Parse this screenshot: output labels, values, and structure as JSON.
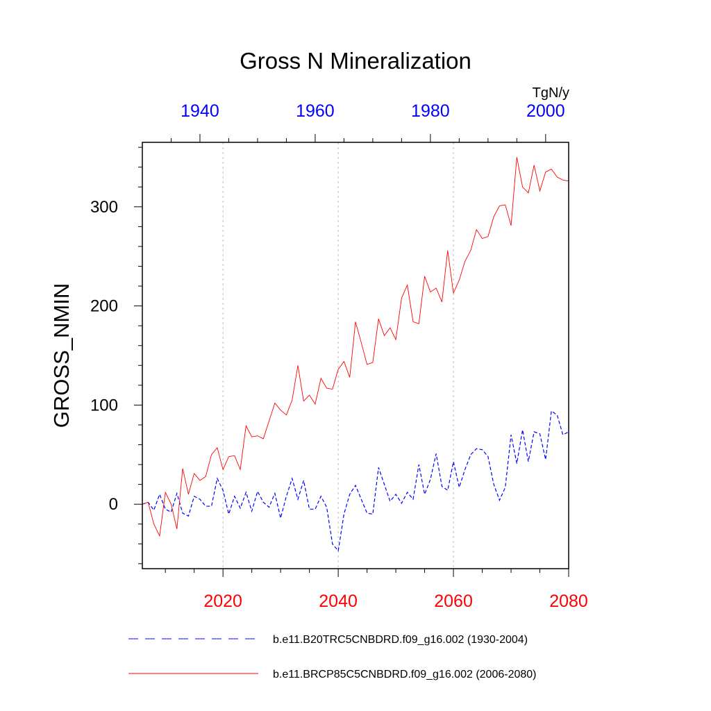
{
  "chart_data": {
    "type": "line",
    "title": "Gross N Mineralization",
    "ylabel": "GROSS_NMIN",
    "units": "TgN/y",
    "ylim": [
      -65,
      365
    ],
    "yticks": [
      0,
      100,
      200,
      300
    ],
    "bottom_axis": {
      "xlim": [
        2006,
        2080
      ],
      "ticks": [
        2020,
        2040,
        2060,
        2080
      ],
      "color": "#ff0000"
    },
    "top_axis": {
      "xlim": [
        1930,
        2004
      ],
      "ticks": [
        1940,
        1960,
        1980,
        2000
      ],
      "color": "#0000ff"
    },
    "vertical_grid": [
      2020,
      2040,
      2060
    ],
    "series": [
      {
        "name": "b.e11.B20TRC5CNBDRD.f09_g16.002 (1930-2004)",
        "axis": "top",
        "color": "#0000ff",
        "dash": "dashed",
        "x_start": 1930,
        "values": [
          0,
          2,
          -6,
          10,
          -5,
          -8,
          11,
          -9,
          -12,
          8,
          5,
          -2,
          -2,
          26,
          14,
          -10,
          8,
          -4,
          12,
          -7,
          13,
          2,
          -3,
          11,
          -14,
          8,
          26,
          5,
          24,
          -5,
          -5,
          8,
          -3,
          -40,
          -47,
          -10,
          10,
          19,
          5,
          -9,
          -10,
          37,
          20,
          3,
          10,
          1,
          12,
          5,
          40,
          10,
          25,
          51,
          18,
          14,
          43,
          17,
          35,
          50,
          56,
          55,
          48,
          20,
          4,
          17,
          70,
          41,
          75,
          43,
          73,
          71,
          45,
          94,
          90,
          70,
          73
        ]
      },
      {
        "name": "b.e11.BRCP85C5CNBDRD.f09_g16.002 (2006-2080)",
        "axis": "bottom",
        "color": "#ff0000",
        "dash": "solid",
        "x_start": 2006,
        "values": [
          0,
          2,
          -20,
          -32,
          12,
          0,
          -25,
          36,
          10,
          31,
          24,
          28,
          50,
          57,
          35,
          48,
          49,
          35,
          79,
          68,
          69,
          66,
          84,
          102,
          95,
          90,
          105,
          140,
          104,
          110,
          101,
          127,
          117,
          116,
          136,
          144,
          128,
          184,
          163,
          141,
          143,
          187,
          170,
          178,
          166,
          208,
          221,
          184,
          182,
          230,
          214,
          218,
          204,
          256,
          213,
          226,
          245,
          256,
          277,
          268,
          270,
          290,
          301,
          302,
          281,
          350,
          320,
          314,
          342,
          316,
          335,
          338,
          330,
          327,
          326
        ]
      }
    ]
  }
}
